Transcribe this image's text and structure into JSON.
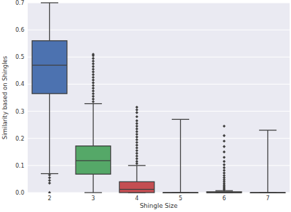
{
  "chart_data": {
    "type": "box",
    "x_label": "Shingle Size",
    "y_label": "Similarity based on Shingles",
    "categories": [
      "2",
      "3",
      "4",
      "5",
      "6",
      "7"
    ],
    "colors": [
      "#4c72b0",
      "#55a868",
      "#c44e52",
      "#8172b2",
      "#ccb974",
      "#64b5cd"
    ],
    "boxes": [
      {
        "whislo": 0.07,
        "q1": 0.365,
        "med": 0.47,
        "q3": 0.56,
        "whishi": 0.7,
        "fliers": [
          0.065,
          0.055,
          0.045,
          0.035,
          0.0
        ]
      },
      {
        "whislo": 0.0,
        "q1": 0.068,
        "med": 0.118,
        "q3": 0.172,
        "whishi": 0.328,
        "fliers": [
          0.335,
          0.345,
          0.355,
          0.365,
          0.375,
          0.385,
          0.395,
          0.405,
          0.415,
          0.425,
          0.435,
          0.445,
          0.455,
          0.465,
          0.475,
          0.485,
          0.495,
          0.505,
          0.51
        ]
      },
      {
        "whislo": 0.0,
        "q1": 0.0,
        "med": 0.012,
        "q3": 0.04,
        "whishi": 0.1,
        "fliers": [
          0.107,
          0.115,
          0.125,
          0.135,
          0.145,
          0.155,
          0.165,
          0.175,
          0.185,
          0.195,
          0.205,
          0.215,
          0.225,
          0.235,
          0.245,
          0.255,
          0.265,
          0.28,
          0.295,
          0.305,
          0.315
        ]
      },
      {
        "whislo": 0.0,
        "q1": 0.0,
        "med": 0.0,
        "q3": 0.0,
        "whishi": 0.27,
        "fliers": []
      },
      {
        "whislo": 0.0,
        "q1": 0.0,
        "med": 0.0,
        "q3": 0.003,
        "whishi": 0.007,
        "fliers": [
          0.011,
          0.016,
          0.021,
          0.027,
          0.033,
          0.04,
          0.047,
          0.055,
          0.063,
          0.072,
          0.082,
          0.092,
          0.103,
          0.115,
          0.13,
          0.15,
          0.17,
          0.19,
          0.21,
          0.245
        ]
      },
      {
        "whislo": 0.0,
        "q1": 0.0,
        "med": 0.0,
        "q3": 0.0,
        "whishi": 0.23,
        "fliers": []
      }
    ],
    "ylim": [
      0,
      0.7
    ],
    "yticks": [
      {
        "value": 0,
        "label": "0.0"
      },
      0.1,
      0.2,
      0.3,
      0.4,
      0.5,
      0.6,
      0.7
    ],
    "grid": true
  }
}
